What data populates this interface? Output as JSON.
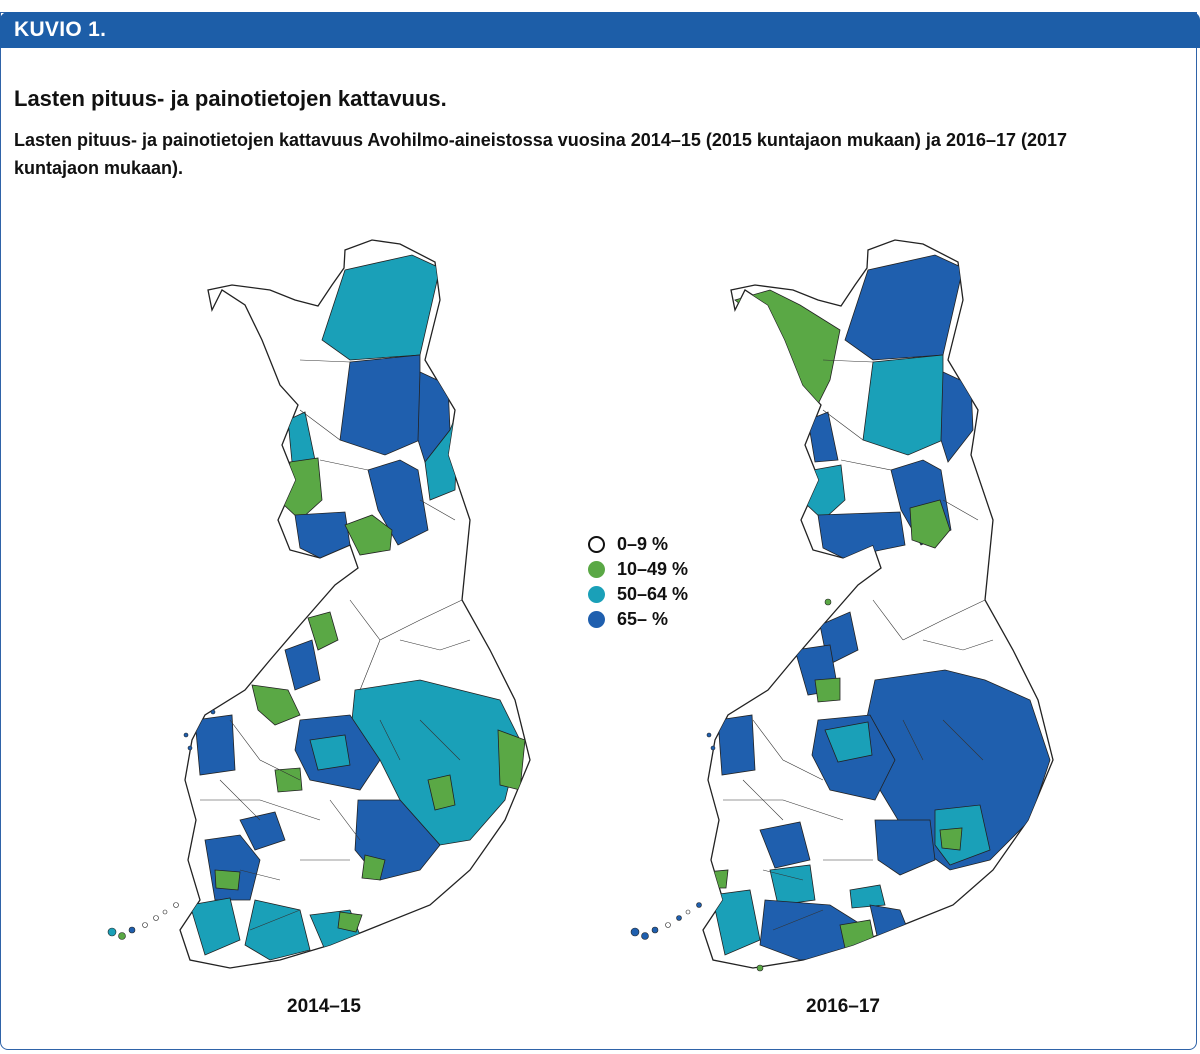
{
  "figure": {
    "label": "KUVIO 1.",
    "title": "Lasten pituus- ja painotietojen kattavuus.",
    "subtitle": "Lasten pituus- ja painotietojen kattavuus Avohilmo-aineistossa vuosina 2014–15 (2015 kuntajaon mukaan) ja 2016–17 (2017 kuntajaon mukaan)."
  },
  "colors": {
    "none": "#ffffff",
    "green": "#5aa845",
    "teal": "#1aa0b8",
    "blue": "#1f5fae",
    "header": "#1d5ea8",
    "border": "#222222"
  },
  "legend": [
    {
      "label": "0–9 %",
      "color": "none"
    },
    {
      "label": "10–49 %",
      "color": "green"
    },
    {
      "label": "50–64 %",
      "color": "teal"
    },
    {
      "label": "65– %",
      "color": "blue"
    }
  ],
  "maps": [
    {
      "label": "2014–15"
    },
    {
      "label": "2016–17"
    }
  ]
}
